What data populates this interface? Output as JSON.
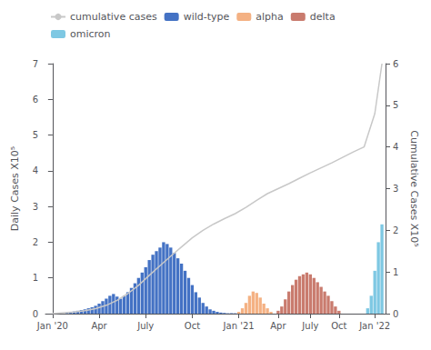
{
  "chart_data": {
    "type": "bar",
    "ylabel": "Daily Cases X10⁵",
    "y2label": "Cumulative Cases X10⁵",
    "xlim": [
      -2,
      93
    ],
    "xticks": [
      {
        "value": 0,
        "label": "Jan '20"
      },
      {
        "value": 13,
        "label": "Apr"
      },
      {
        "value": 26,
        "label": "July"
      },
      {
        "value": 39,
        "label": "Oct"
      },
      {
        "value": 52,
        "label": "Jan '21"
      },
      {
        "value": 63,
        "label": "Apr"
      },
      {
        "value": 72,
        "label": "July"
      },
      {
        "value": 80,
        "label": "Oct"
      },
      {
        "value": 90,
        "label": "Jan '22"
      }
    ],
    "ylim": [
      0,
      7
    ],
    "yticks": [
      0,
      1,
      2,
      3,
      4,
      5,
      6,
      7
    ],
    "y2lim": [
      0,
      6
    ],
    "y2ticks": [
      0,
      1,
      2,
      3,
      4,
      5,
      6
    ],
    "grid": false,
    "legend": "upper left",
    "series": [
      {
        "name": "cumulative cases",
        "type": "line",
        "axis": "y2",
        "color": "#C8C8C8",
        "x": [
          0,
          3,
          6,
          9,
          12,
          15,
          18,
          21,
          24,
          27,
          30,
          33,
          36,
          39,
          42,
          45,
          48,
          51,
          54,
          57,
          60,
          63,
          66,
          69,
          72,
          75,
          78,
          81,
          84,
          87,
          90,
          92
        ],
        "values": [
          0.0,
          0.02,
          0.04,
          0.07,
          0.12,
          0.2,
          0.32,
          0.48,
          0.68,
          0.92,
          1.15,
          1.38,
          1.6,
          1.82,
          2.0,
          2.15,
          2.28,
          2.4,
          2.55,
          2.72,
          2.88,
          3.0,
          3.12,
          3.25,
          3.38,
          3.5,
          3.62,
          3.75,
          3.88,
          4.0,
          4.8,
          6.0
        ]
      },
      {
        "name": "wild-type",
        "type": "bar",
        "color": "#4472C4",
        "x": [
          4,
          5,
          6,
          7,
          8,
          9,
          10,
          11,
          12,
          13,
          14,
          15,
          16,
          17,
          18,
          19,
          20,
          21,
          22,
          23,
          24,
          25,
          26,
          27,
          28,
          29,
          30,
          31,
          32,
          33,
          34,
          35,
          36,
          37,
          38,
          39,
          40,
          41,
          42,
          43,
          44,
          45,
          46,
          47,
          48,
          49,
          50,
          51
        ],
        "values": [
          0.02,
          0.04,
          0.06,
          0.08,
          0.1,
          0.12,
          0.15,
          0.18,
          0.22,
          0.28,
          0.35,
          0.42,
          0.5,
          0.55,
          0.48,
          0.42,
          0.5,
          0.6,
          0.72,
          0.85,
          1.0,
          1.15,
          1.3,
          1.5,
          1.65,
          1.75,
          1.85,
          2.0,
          1.95,
          1.85,
          1.7,
          1.55,
          1.4,
          1.2,
          1.0,
          0.8,
          0.6,
          0.45,
          0.3,
          0.2,
          0.12,
          0.08,
          0.05,
          0.03,
          0.02,
          0.01,
          0.01,
          0.01
        ]
      },
      {
        "name": "alpha",
        "type": "bar",
        "color": "#F4B183",
        "x": [
          52,
          53,
          54,
          55,
          56,
          57,
          58,
          59,
          60,
          61
        ],
        "values": [
          0.05,
          0.15,
          0.3,
          0.5,
          0.62,
          0.58,
          0.45,
          0.28,
          0.15,
          0.05
        ]
      },
      {
        "name": "delta",
        "type": "bar",
        "color": "#C97B6E",
        "x": [
          63,
          64,
          65,
          66,
          67,
          68,
          69,
          70,
          71,
          72,
          73,
          74,
          75,
          76,
          77,
          78,
          79,
          80
        ],
        "values": [
          0.08,
          0.2,
          0.4,
          0.62,
          0.8,
          0.95,
          1.05,
          1.1,
          1.15,
          1.1,
          1.0,
          0.88,
          0.75,
          0.62,
          0.5,
          0.35,
          0.2,
          0.08
        ]
      },
      {
        "name": "omicron",
        "type": "bar",
        "color": "#7EC8E3",
        "x": [
          88,
          89,
          90,
          91,
          92
        ],
        "values": [
          0.15,
          0.5,
          1.2,
          2.0,
          2.5
        ]
      }
    ]
  }
}
